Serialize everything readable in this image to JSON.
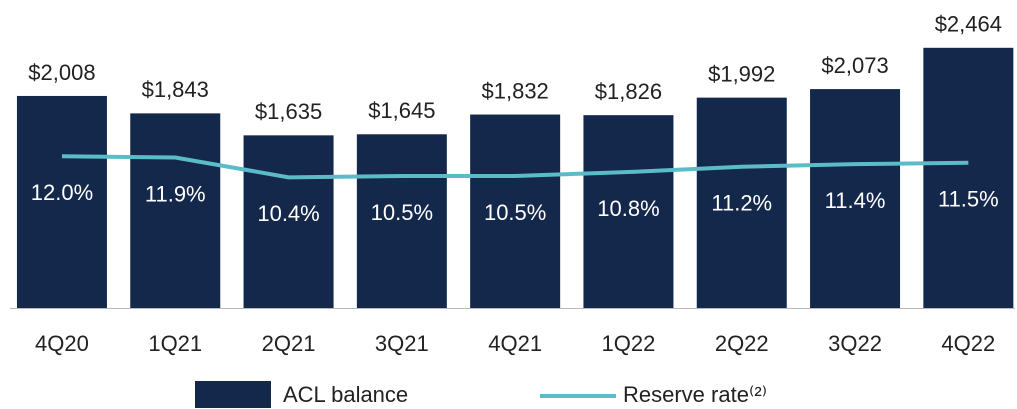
{
  "chart_data": {
    "type": "bar_line",
    "categories": [
      "4Q20",
      "1Q21",
      "2Q21",
      "3Q21",
      "4Q21",
      "1Q22",
      "2Q22",
      "3Q22",
      "4Q22"
    ],
    "series": [
      {
        "name": "ACL balance",
        "type": "bar",
        "color": "#14284b",
        "values": [
          2008,
          1843,
          1635,
          1645,
          1832,
          1826,
          1992,
          2073,
          2464
        ],
        "value_labels": [
          "$2,008",
          "$1,843",
          "$1,635",
          "$1,645",
          "$1,832",
          "$1,826",
          "$1,992",
          "$2,073",
          "$2,464"
        ]
      },
      {
        "name": "Reserve rate⁽²⁾",
        "type": "line",
        "axis": "y2",
        "color": "#5bbcc8",
        "values": [
          12.0,
          11.9,
          10.4,
          10.5,
          10.5,
          10.8,
          11.2,
          11.4,
          11.5
        ],
        "value_labels": [
          "12.0%",
          "11.9%",
          "10.4%",
          "10.5%",
          "10.5%",
          "10.8%",
          "11.2%",
          "11.4%",
          "11.5%"
        ]
      }
    ],
    "ylim": [
      0,
      2500
    ],
    "y2lim": [
      0.5,
      20.5
    ],
    "legend": "bottom"
  }
}
